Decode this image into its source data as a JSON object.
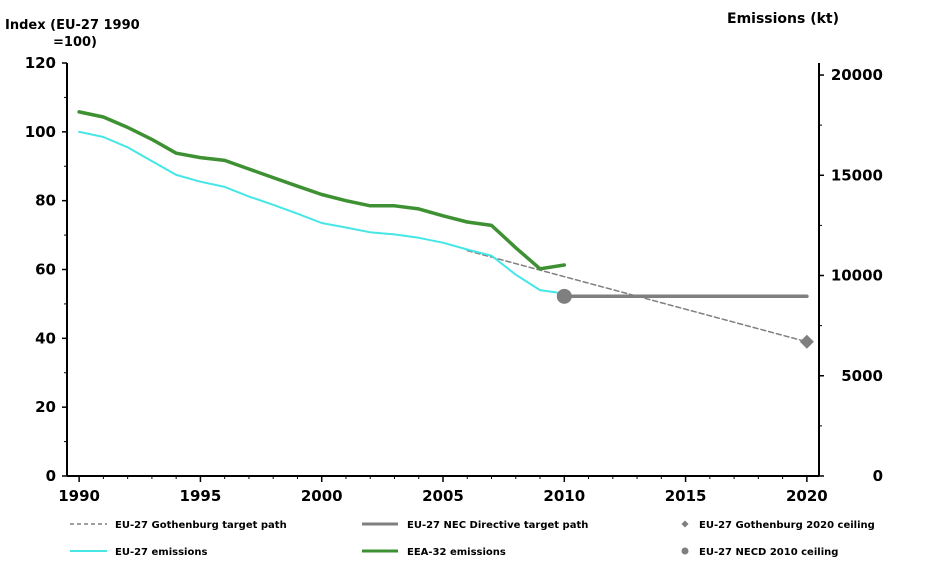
{
  "chart_data": {
    "type": "line",
    "y_left": {
      "title_line1": "Index (EU-27 1990",
      "title_line2": "=100)",
      "ylim": [
        0,
        120
      ],
      "ticks": [
        "0",
        "20",
        "40",
        "60",
        "80",
        "100",
        "120"
      ]
    },
    "y_right": {
      "title": "Emissions (kt)",
      "ylim": [
        0,
        20600
      ],
      "ticks": [
        "0",
        "5000",
        "10000",
        "15000",
        "20000"
      ]
    },
    "x_axis": {
      "xlim": [
        1989.5,
        2020.5
      ],
      "ticks": [
        "1990",
        "1995",
        "2000",
        "2005",
        "2010",
        "2015",
        "2020"
      ]
    },
    "grid": false,
    "series": [
      {
        "name": "EU-27 emissions",
        "color": "#44e6e6",
        "style": "solid",
        "x": [
          1990,
          1991,
          1992,
          1993,
          1994,
          1995,
          1996,
          1997,
          1998,
          1999,
          2000,
          2001,
          2002,
          2003,
          2004,
          2005,
          2006,
          2007,
          2008,
          2009,
          2010
        ],
        "y": [
          100,
          98.5,
          95.5,
          91.5,
          87.5,
          85.5,
          84,
          81.2,
          78.8,
          76.2,
          73.5,
          72.2,
          70.8,
          70.2,
          69.2,
          67.8,
          65.8,
          64,
          58.5,
          54,
          53
        ]
      },
      {
        "name": "EEA-32 emissions",
        "color": "#3d9133",
        "style": "solid",
        "x": [
          1990,
          1991,
          1992,
          1993,
          1994,
          1995,
          1996,
          1997,
          1998,
          1999,
          2000,
          2001,
          2002,
          2003,
          2004,
          2005,
          2006,
          2007,
          2008,
          2009,
          2010
        ],
        "y": [
          105.8,
          104.3,
          101.3,
          97.8,
          93.8,
          92.5,
          91.7,
          89.2,
          86.7,
          84.2,
          81.8,
          80,
          78.5,
          78.5,
          77.6,
          75.6,
          73.8,
          72.8,
          66.3,
          60.2,
          61.3
        ]
      },
      {
        "name": "EU-27 Gothenburg target path",
        "color": "#7f7f7f",
        "style": "dashed",
        "x": [
          2006,
          2020
        ],
        "y": [
          65.5,
          39
        ]
      },
      {
        "name": "EU-27 NEC Directive target path",
        "color": "#7f7f7f",
        "style": "solid",
        "x": [
          2010,
          2020
        ],
        "y": [
          52.2,
          52.2
        ]
      },
      {
        "name": "EU-27 Gothenburg 2020 ceiling",
        "color": "#7f7f7f",
        "style": "marker-diamond",
        "x": [
          2020
        ],
        "y": [
          39
        ]
      },
      {
        "name": "EU-27 NECD 2010 ceiling",
        "color": "#7f7f7f",
        "style": "marker-circle",
        "x": [
          2010
        ],
        "y": [
          52.2
        ]
      }
    ],
    "legend": {
      "placement": "bottom",
      "items": [
        "EU-27 Gothenburg target path",
        "EU-27 NEC Directive target path",
        "EU-27 Gothenburg 2020 ceiling",
        "EU-27 emissions",
        "EEA-32 emissions",
        "EU-27 NECD 2010 ceiling"
      ]
    }
  }
}
